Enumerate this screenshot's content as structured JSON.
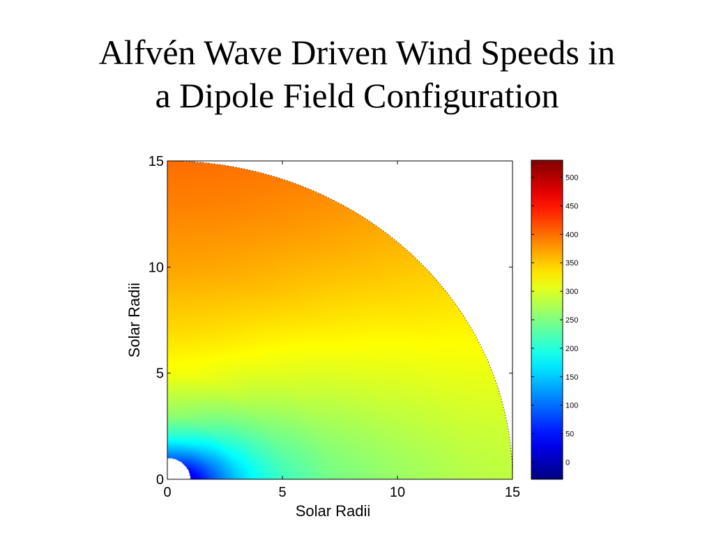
{
  "slide": {
    "title_line1": "Alfvén Wave Driven Wind Speeds in",
    "title_line2": "a Dipole Field Configuration"
  },
  "chart_data": {
    "type": "heatmap",
    "geometry": "quarter-disk (polar wedge)",
    "title": "",
    "xlabel": "Solar Radii",
    "ylabel": "Solar Radii",
    "xlim": [
      0,
      15
    ],
    "ylim": [
      0,
      15
    ],
    "x_ticks": [
      "0",
      "5",
      "10",
      "15"
    ],
    "y_ticks": [
      "0",
      "5",
      "10",
      "15"
    ],
    "grid": false,
    "outer_radius": 15,
    "inner_radius": 1,
    "colormap": "jet",
    "colorbar": {
      "min": -30,
      "max": 530,
      "ticks": [
        "0",
        "50",
        "100",
        "150",
        "200",
        "250",
        "300",
        "350",
        "400",
        "450",
        "500"
      ],
      "tick_values": [
        0,
        50,
        100,
        150,
        200,
        250,
        300,
        350,
        400,
        450,
        500
      ]
    },
    "speed_profile": {
      "along_equator": {
        "r": [
          1,
          2,
          3,
          4,
          5,
          7,
          10,
          13,
          15
        ],
        "v": [
          20,
          90,
          150,
          190,
          215,
          245,
          265,
          280,
          285
        ]
      },
      "along_pole": {
        "r": [
          1,
          2,
          3,
          5,
          7,
          10,
          13,
          15
        ],
        "v": [
          100,
          200,
          260,
          315,
          340,
          370,
          390,
          400
        ]
      }
    },
    "colors": {
      "jet": [
        "#00007f",
        "#0000ff",
        "#007fff",
        "#00ffff",
        "#7fff7f",
        "#ffff00",
        "#ff7f00",
        "#ff0000",
        "#7f0000"
      ]
    }
  }
}
